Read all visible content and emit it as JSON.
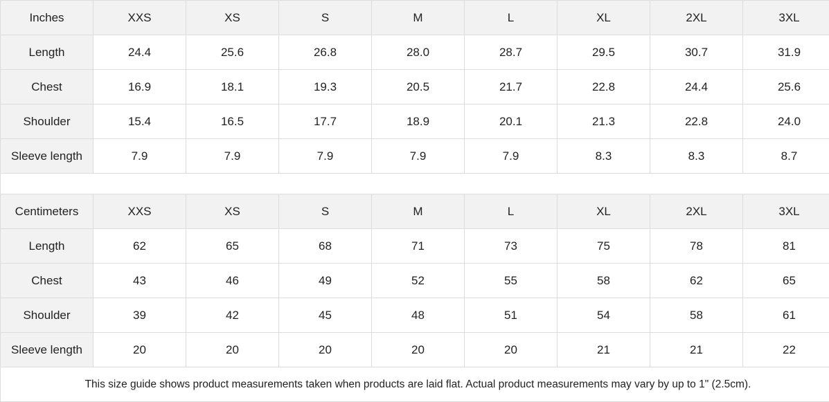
{
  "sizes": [
    "XXS",
    "XS",
    "S",
    "M",
    "L",
    "XL",
    "2XL",
    "3XL"
  ],
  "tables": [
    {
      "unit": "Inches",
      "rows": [
        {
          "label": "Length",
          "values": [
            "24.4",
            "25.6",
            "26.8",
            "28.0",
            "28.7",
            "29.5",
            "30.7",
            "31.9"
          ]
        },
        {
          "label": "Chest",
          "values": [
            "16.9",
            "18.1",
            "19.3",
            "20.5",
            "21.7",
            "22.8",
            "24.4",
            "25.6"
          ]
        },
        {
          "label": "Shoulder",
          "values": [
            "15.4",
            "16.5",
            "17.7",
            "18.9",
            "20.1",
            "21.3",
            "22.8",
            "24.0"
          ]
        },
        {
          "label": "Sleeve length",
          "values": [
            "7.9",
            "7.9",
            "7.9",
            "7.9",
            "7.9",
            "8.3",
            "8.3",
            "8.7"
          ]
        }
      ]
    },
    {
      "unit": "Centimeters",
      "rows": [
        {
          "label": "Length",
          "values": [
            "62",
            "65",
            "68",
            "71",
            "73",
            "75",
            "78",
            "81"
          ]
        },
        {
          "label": "Chest",
          "values": [
            "43",
            "46",
            "49",
            "52",
            "55",
            "58",
            "62",
            "65"
          ]
        },
        {
          "label": "Shoulder",
          "values": [
            "39",
            "42",
            "45",
            "48",
            "51",
            "54",
            "58",
            "61"
          ]
        },
        {
          "label": "Sleeve length",
          "values": [
            "20",
            "20",
            "20",
            "20",
            "20",
            "21",
            "21",
            "22"
          ]
        }
      ]
    }
  ],
  "note": "This size guide shows product measurements taken when products are laid flat.  Actual product measurements may vary by up to 1\" (2.5cm)."
}
